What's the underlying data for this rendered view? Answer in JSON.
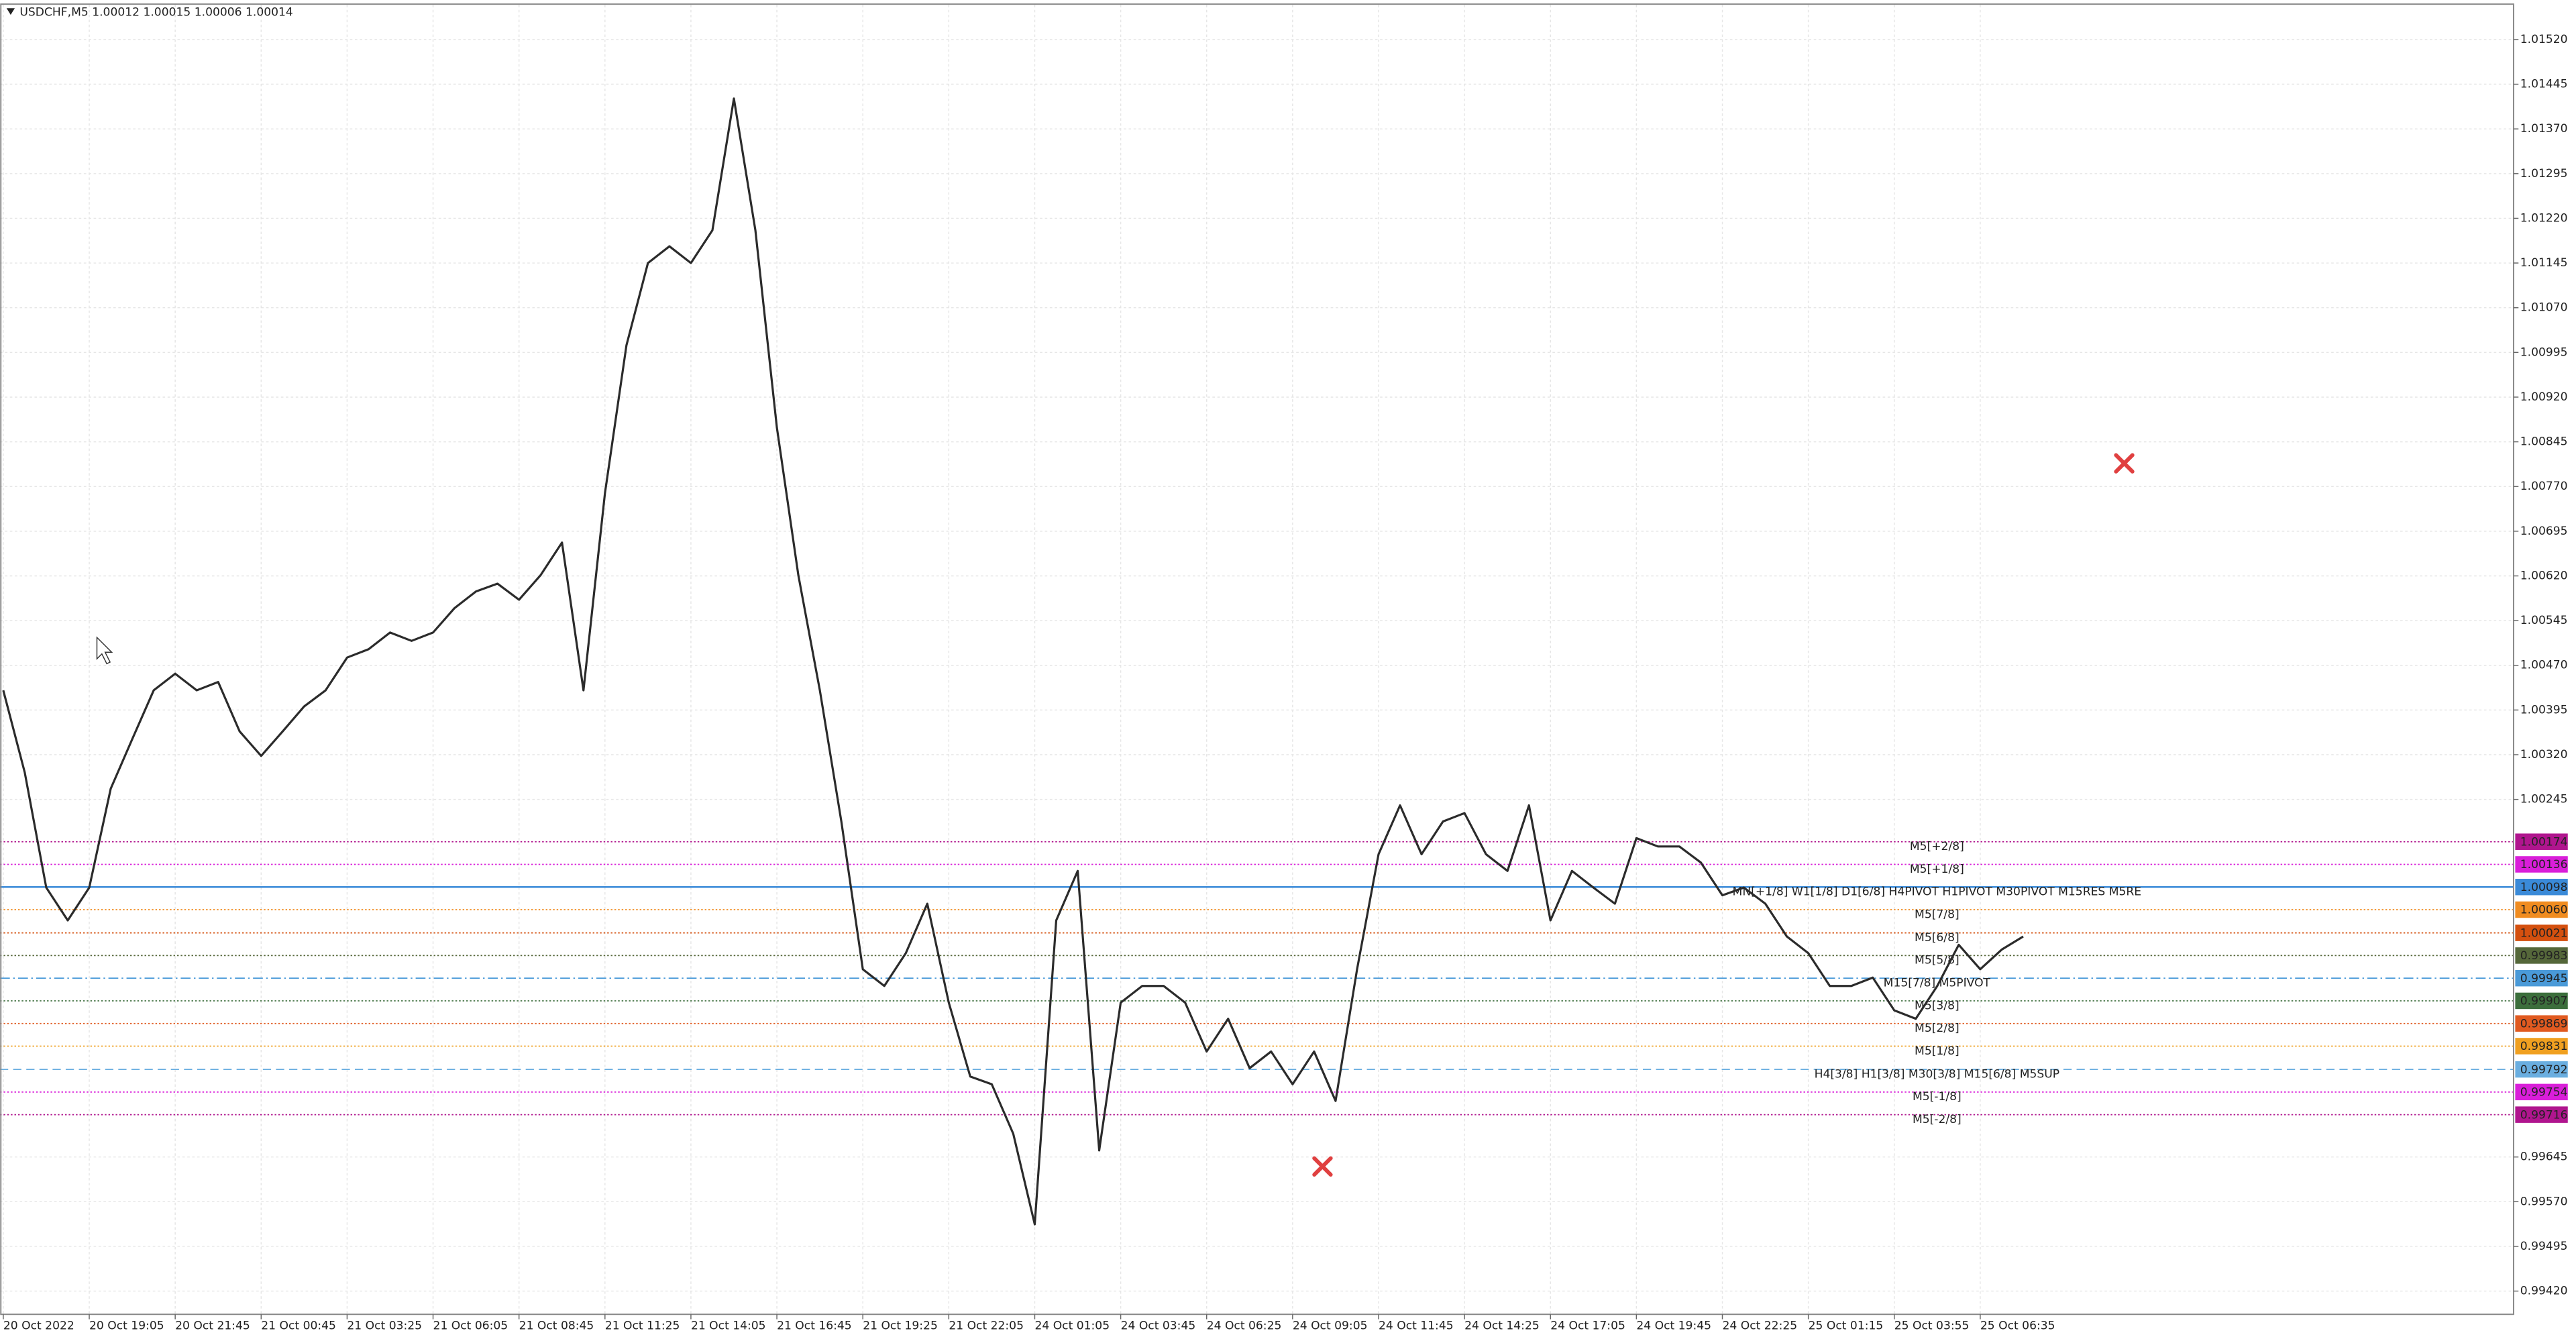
{
  "chart_data": {
    "type": "line",
    "title": "USDCHF,M5  1.00012 1.00015 1.00006 1.00014",
    "color": "#2b2b2b",
    "grid": true,
    "categories": [
      "20 Oct 2022",
      null,
      null,
      null,
      "20 Oct 19:05",
      null,
      null,
      null,
      "20 Oct 21:45",
      null,
      null,
      null,
      "21 Oct 00:45",
      null,
      null,
      null,
      "21 Oct 03:25",
      null,
      null,
      null,
      "21 Oct 06:05",
      null,
      null,
      null,
      "21 Oct 08:45",
      null,
      null,
      null,
      "21 Oct 11:25",
      null,
      null,
      null,
      "21 Oct 14:05",
      null,
      null,
      null,
      "21 Oct 16:45",
      null,
      null,
      null,
      "21 Oct 19:25",
      null,
      null,
      null,
      "21 Oct 22:05",
      null,
      null,
      null,
      "24 Oct 01:05",
      null,
      null,
      null,
      "24 Oct 03:45",
      null,
      null,
      null,
      "24 Oct 06:25",
      null,
      null,
      null,
      "24 Oct 09:05",
      null,
      null,
      null,
      "24 Oct 11:45",
      null,
      null,
      null,
      "24 Oct 14:25",
      null,
      null,
      null,
      "24 Oct 17:05",
      null,
      null,
      null,
      "24 Oct 19:45",
      null,
      null,
      null,
      "24 Oct 22:25",
      null,
      null,
      null,
      "25 Oct 01:15",
      null,
      null,
      null,
      "25 Oct 03:55",
      null,
      null,
      null,
      "25 Oct 06:35",
      null,
      null
    ],
    "values": [
      1.00428,
      1.0029,
      1.00097,
      1.00042,
      1.00097,
      1.00263,
      1.00346,
      1.00428,
      1.00456,
      1.00428,
      1.00442,
      1.00359,
      1.00318,
      1.00359,
      1.00401,
      1.00428,
      1.00483,
      1.00497,
      1.00525,
      1.00511,
      1.00525,
      1.00566,
      1.00594,
      1.00607,
      1.0058,
      1.00621,
      1.00676,
      1.00428,
      1.00759,
      1.01007,
      1.01145,
      1.01173,
      1.01145,
      1.012,
      1.01421,
      1.012,
      1.00869,
      1.00621,
      1.00428,
      1.00208,
      0.9996,
      0.99932,
      0.99987,
      1.0007,
      0.99904,
      0.9978,
      0.99767,
      0.99684,
      0.99532,
      1.00042,
      1.00125,
      0.99656,
      0.99904,
      0.99932,
      0.99932,
      0.99904,
      0.99822,
      0.99877,
      0.99794,
      0.99822,
      0.99767,
      0.99822,
      0.99739,
      0.9996,
      1.00153,
      1.00235,
      1.00153,
      1.00208,
      1.00222,
      1.00153,
      1.00125,
      1.00235,
      1.00042,
      1.00125,
      1.00097,
      1.0007,
      1.0018,
      1.00166,
      1.00166,
      1.00139,
      1.00084,
      1.00097,
      1.0007,
      1.00015,
      0.99987,
      0.99932,
      0.99932,
      0.99946,
      0.99891,
      0.99877,
      0.99932,
      1.00001,
      0.9996,
      0.99993,
      1.00015
    ],
    "ylim": [
      0.99381,
      1.01578
    ],
    "yticks": [
      {
        "value": 1.0152,
        "label": "1.01520"
      },
      1.01445,
      {
        "value": 1.0137,
        "label": "1.01370"
      },
      1.01295,
      {
        "value": 1.0122,
        "label": "1.01220"
      },
      1.01145,
      {
        "value": 1.0107,
        "label": "1.01070"
      },
      1.00995,
      {
        "value": 1.0092,
        "label": "1.00920"
      },
      1.00845,
      {
        "value": 1.0077,
        "label": "1.00770"
      },
      1.00695,
      {
        "value": 1.0062,
        "label": "1.00620"
      },
      1.00545,
      {
        "value": 1.0047,
        "label": "1.00470"
      },
      1.00395,
      {
        "value": 1.0032,
        "label": "1.00320"
      },
      1.00245,
      0.99645,
      {
        "value": 0.9957,
        "label": "0.99570"
      },
      0.99495,
      {
        "value": 0.9942,
        "label": "0.99420"
      }
    ],
    "levels": [
      {
        "name": "M5[+2/8]",
        "value": 1.00174,
        "value_label": "1.00174",
        "color": "#b0158e",
        "dash": "dotted"
      },
      {
        "name": "M5[+1/8]",
        "value": 1.00136,
        "value_label": "1.00136",
        "color": "#d91ed9",
        "dash": "dotted"
      },
      {
        "name": "MN[+1/8] W1[1/8] D1[6/8] H4PIVOT H1PIVOT M30PIVOT M15RES M5RE",
        "value": 1.00098,
        "value_label": "1.00098",
        "color": "#3a8ad8",
        "dash": "solid"
      },
      {
        "name": "M5[7/8]",
        "value": 1.0006,
        "value_label": "1.00060",
        "color": "#f08c20",
        "dash": "dotted"
      },
      {
        "name": "M5[6/8]",
        "value": 1.00021,
        "value_label": "1.00021",
        "color": "#d4500f",
        "dash": "dotted"
      },
      {
        "name": "M5[5/8]",
        "value": 0.99983,
        "value_label": "0.99983",
        "color": "#55673a",
        "dash": "dotted"
      },
      {
        "name": "M15[7/8] M5PIVOT",
        "value": 0.99945,
        "value_label": "0.99945",
        "color": "#4a9ad8",
        "dash": "dashdot"
      },
      {
        "name": "M5[3/8]",
        "value": 0.99907,
        "value_label": "0.99907",
        "color": "#3c6e3c",
        "dash": "dotted"
      },
      {
        "name": "M5[2/8]",
        "value": 0.99869,
        "value_label": "0.99869",
        "color": "#e05a20",
        "dash": "dotted"
      },
      {
        "name": "M5[1/8]",
        "value": 0.99831,
        "value_label": "0.99831",
        "color": "#f0a020",
        "dash": "dotted"
      },
      {
        "name": "H4[3/8] H1[3/8] M30[3/8] M15[6/8] M5SUP",
        "value": 0.99792,
        "value_label": "0.99792",
        "color": "#6aaee0",
        "dash": "dashed"
      },
      {
        "name": "M5[-1/8]",
        "value": 0.99754,
        "value_label": "0.99754",
        "color": "#d91ed9",
        "dash": "dotted"
      },
      {
        "name": "M5[-2/8]",
        "value": 0.99716,
        "value_label": "0.99716",
        "color": "#b0158e",
        "dash": "dotted"
      }
    ]
  }
}
